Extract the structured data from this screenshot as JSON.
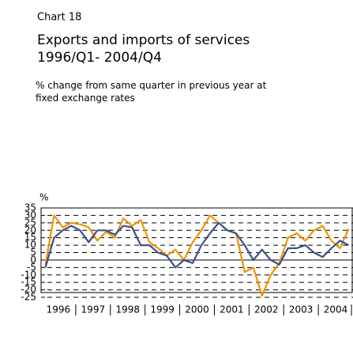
{
  "chart_data": {
    "type": "line",
    "label": "Chart 18",
    "title": "Exports and imports of services",
    "subtitle": "1996/Q1- 2004/Q4",
    "note": "% change from same quarter in previous year at fixed exchange rates",
    "y_unit": "%",
    "years": [
      "1996",
      "1997",
      "1998",
      "1999",
      "2000",
      "2001",
      "2002",
      "2003",
      "2004"
    ],
    "quarters_per_year": 4,
    "series": [
      {
        "color": "#f39200",
        "values": [
          -3,
          30,
          22,
          25,
          24,
          22,
          13,
          19,
          15,
          28,
          23,
          27,
          12,
          8,
          3,
          7,
          0,
          12,
          20,
          30,
          25,
          20,
          18,
          -8,
          -5,
          -24,
          -10,
          -2,
          15,
          18,
          13,
          20,
          23,
          13,
          8,
          21
        ]
      },
      {
        "color": "#3a4f8c",
        "values": [
          -5,
          15,
          20,
          23,
          20,
          12,
          20,
          20,
          17,
          23,
          22,
          10,
          10,
          5,
          3,
          -5,
          0,
          -2,
          10,
          18,
          25,
          20,
          18,
          10,
          0,
          7,
          0,
          -3,
          8,
          8,
          10,
          5,
          2,
          8,
          13,
          10
        ]
      }
    ],
    "ylim": [
      -25,
      35
    ],
    "yticks": [
      35,
      30,
      25,
      20,
      15,
      10,
      5,
      0,
      -5,
      -10,
      -15,
      -20,
      -25
    ],
    "grid": true
  }
}
